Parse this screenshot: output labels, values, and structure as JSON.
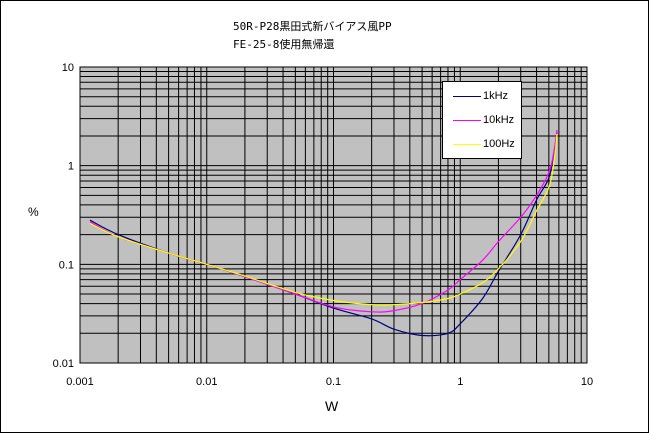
{
  "chart_data": {
    "type": "line",
    "title": "50R-P28黒田式新バイアス風PP",
    "subtitle": "FE-25-8使用無帰還",
    "xlabel": "W",
    "ylabel": "%",
    "xscale": "log",
    "yscale": "log",
    "xlim": [
      0.001,
      10
    ],
    "ylim": [
      0.01,
      10
    ],
    "x_ticks": [
      "0.001",
      "0.01",
      "0.1",
      "1",
      "10"
    ],
    "y_ticks": [
      "0.01",
      "0.1",
      "1",
      "10"
    ],
    "grid": true,
    "legend_position": "top-right",
    "series": [
      {
        "name": "1kHz",
        "color": "#000080",
        "x": [
          0.0012,
          0.002,
          0.005,
          0.01,
          0.02,
          0.05,
          0.1,
          0.2,
          0.3,
          0.5,
          0.8,
          1.0,
          1.5,
          2.0,
          3.0,
          4.0,
          5.0,
          5.5,
          5.8
        ],
        "y": [
          0.28,
          0.2,
          0.13,
          0.1,
          0.075,
          0.05,
          0.036,
          0.028,
          0.022,
          0.019,
          0.02,
          0.025,
          0.045,
          0.085,
          0.2,
          0.45,
          0.75,
          1.4,
          2.2
        ]
      },
      {
        "name": "10kHz",
        "color": "#ff00ff",
        "x": [
          0.0012,
          0.002,
          0.005,
          0.01,
          0.02,
          0.05,
          0.1,
          0.2,
          0.3,
          0.5,
          0.8,
          1.0,
          1.5,
          2.0,
          3.0,
          4.0,
          5.0,
          5.5,
          5.8
        ],
        "y": [
          0.27,
          0.19,
          0.13,
          0.1,
          0.075,
          0.05,
          0.037,
          0.033,
          0.034,
          0.04,
          0.055,
          0.07,
          0.11,
          0.17,
          0.3,
          0.5,
          0.85,
          1.4,
          2.3
        ]
      },
      {
        "name": "100Hz",
        "color": "#ffff00",
        "x": [
          0.0012,
          0.002,
          0.005,
          0.01,
          0.02,
          0.05,
          0.1,
          0.2,
          0.3,
          0.5,
          0.8,
          1.0,
          1.5,
          2.0,
          3.0,
          4.0,
          5.0,
          5.5,
          5.8
        ],
        "y": [
          0.26,
          0.19,
          0.13,
          0.1,
          0.076,
          0.052,
          0.043,
          0.039,
          0.039,
          0.041,
          0.045,
          0.05,
          0.065,
          0.09,
          0.17,
          0.35,
          0.6,
          1.1,
          2.1
        ]
      }
    ]
  }
}
